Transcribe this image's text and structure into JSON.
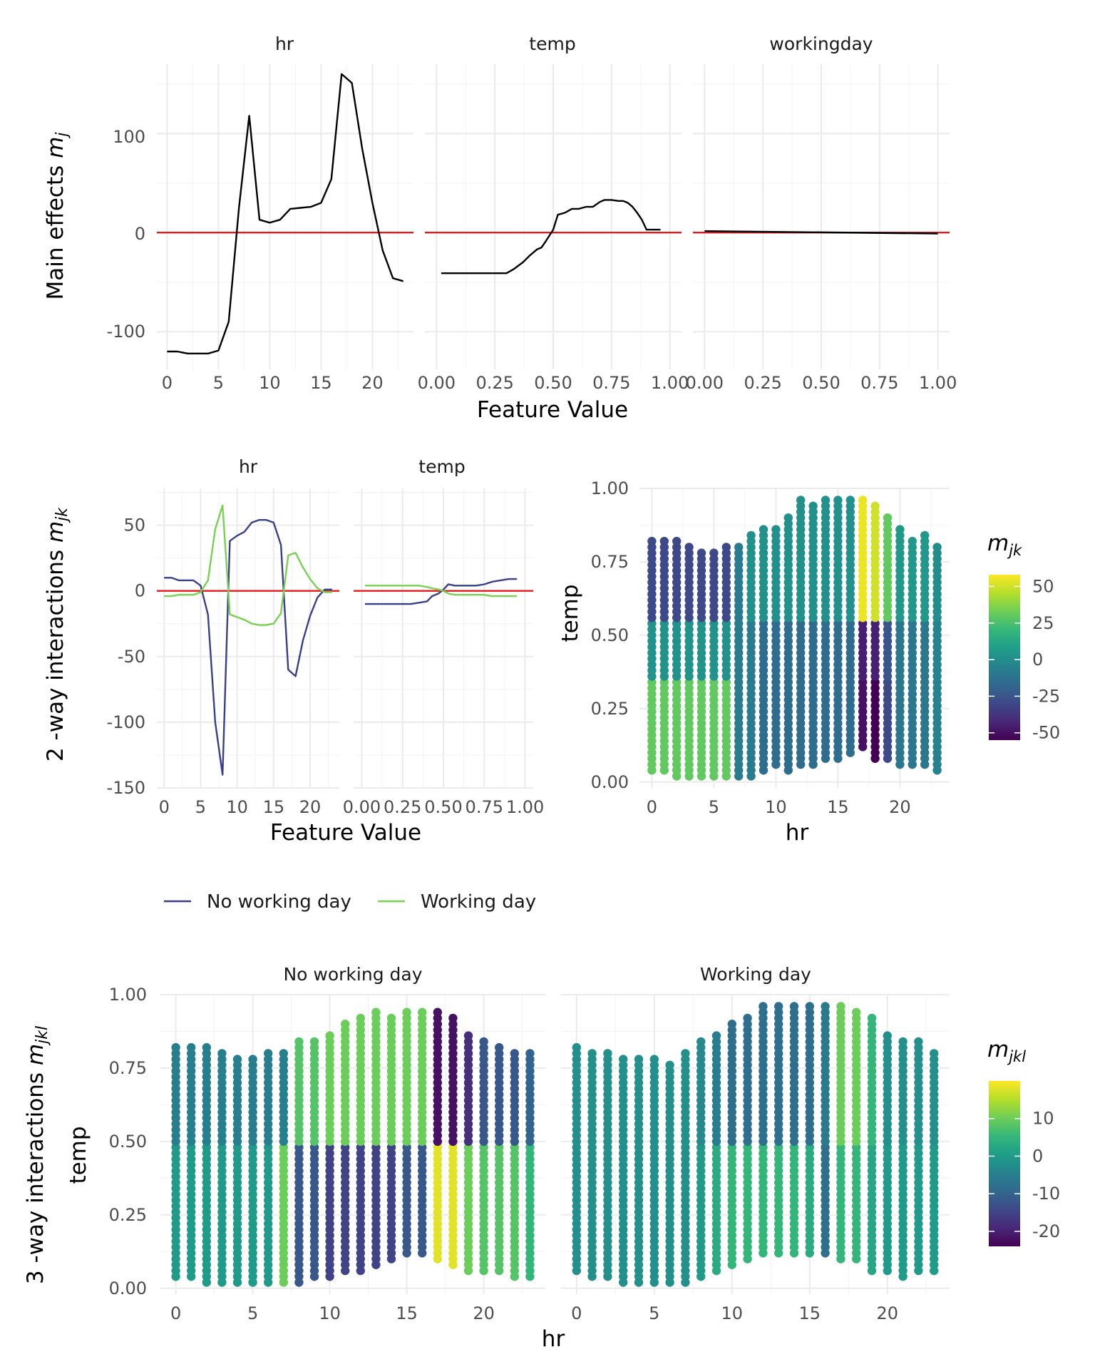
{
  "colors": {
    "zero_line": "#e41a1c",
    "main_line": "#000000",
    "no_working_day": "#3a3f8a",
    "working_day": "#79d151",
    "grid_major": "#ebebeb",
    "grid_minor": "#f3f3f3",
    "viridis": [
      "#440154",
      "#482878",
      "#3e4989",
      "#31688e",
      "#26828e",
      "#1f9e89",
      "#35b779",
      "#6ece58",
      "#b5de2b",
      "#fde725"
    ]
  },
  "row1": {
    "ylabel_main": "Main effects ",
    "ylabel_sym": "m",
    "ylabel_sub": "j",
    "xlabel": "Feature Value",
    "yticks": [
      "-100",
      "0",
      "100"
    ],
    "panels": [
      {
        "strip": "hr",
        "xticks": [
          "0",
          "5",
          "10",
          "15",
          "20"
        ]
      },
      {
        "strip": "temp",
        "xticks": [
          "0.00",
          "0.25",
          "0.50",
          "0.75",
          "1.00"
        ]
      },
      {
        "strip": "workingday",
        "xticks": [
          "0.00",
          "0.25",
          "0.50",
          "0.75",
          "1.00"
        ]
      }
    ]
  },
  "row2": {
    "ylabel_main": "2 -way interactions ",
    "ylabel_sym": "m",
    "ylabel_sub": "jk",
    "xlabel": "Feature Value",
    "yticks": [
      "-150",
      "-100",
      "-50",
      "0",
      "50"
    ],
    "panels": [
      {
        "strip": "hr",
        "xticks": [
          "0",
          "5",
          "10",
          "15",
          "20"
        ]
      },
      {
        "strip": "temp",
        "xticks": [
          "0.00",
          "0.25",
          "0.50",
          "0.75",
          "1.00"
        ]
      }
    ],
    "heatmap": {
      "xlabel": "hr",
      "ylabel": "temp",
      "xticks": [
        "0",
        "5",
        "10",
        "15",
        "20"
      ],
      "yticks": [
        "0.00",
        "0.25",
        "0.50",
        "0.75",
        "1.00"
      ],
      "legend_title_sym": "m",
      "legend_title_sub": "jk",
      "legend_ticks": [
        "50",
        "25",
        "0",
        "-25",
        "-50"
      ]
    },
    "legend": {
      "no_working_day": "No working day",
      "working_day": "Working day"
    }
  },
  "row3": {
    "ylabel_main": "3 -way interactions ",
    "ylabel_sym": "m",
    "ylabel_sub": "jkl",
    "ylabel_axis": "temp",
    "xlabel": "hr",
    "yticks": [
      "0.00",
      "0.25",
      "0.50",
      "0.75",
      "1.00"
    ],
    "panels": [
      {
        "strip": "No working day",
        "xticks": [
          "0",
          "5",
          "10",
          "15",
          "20"
        ]
      },
      {
        "strip": "Working day",
        "xticks": [
          "0",
          "5",
          "10",
          "15",
          "20"
        ]
      }
    ],
    "legend_title_sym": "m",
    "legend_title_sub": "jkl",
    "legend_ticks": [
      "10",
      "0",
      "-10",
      "-20"
    ]
  },
  "chart_data": [
    {
      "type": "line",
      "title": "",
      "ylabel": "Main effects m_j",
      "xlabel": "Feature Value",
      "ylim": [
        -138,
        170
      ],
      "facets": [
        {
          "strip": "hr",
          "xlim": [
            -1,
            24
          ],
          "series": [
            {
              "x": [
                0,
                1,
                2,
                3,
                4,
                5,
                6,
                7,
                8,
                9,
                10,
                11,
                12,
                13,
                14,
                15,
                16,
                17,
                18,
                19,
                20,
                21,
                22,
                23
              ],
              "values": [
                -120,
                -120,
                -122,
                -122,
                -122,
                -119,
                -90,
                25,
                118,
                13,
                10,
                13,
                24,
                25,
                26,
                30,
                54,
                160,
                151,
                85,
                30,
                -18,
                -46,
                -49
              ]
            }
          ]
        },
        {
          "strip": "temp",
          "xlim": [
            -0.05,
            1.05
          ],
          "series": [
            {
              "x": [
                0.02,
                0.1,
                0.2,
                0.25,
                0.3,
                0.33,
                0.37,
                0.4,
                0.43,
                0.45,
                0.47,
                0.5,
                0.52,
                0.55,
                0.58,
                0.61,
                0.64,
                0.67,
                0.7,
                0.72,
                0.75,
                0.78,
                0.8,
                0.82,
                0.84,
                0.86,
                0.88,
                0.9,
                0.92,
                0.94,
                0.96
              ],
              "values": [
                -41,
                -41,
                -41,
                -41,
                -41,
                -37,
                -30,
                -23,
                -17,
                -15,
                -8,
                3,
                18,
                20,
                24,
                24,
                26,
                26,
                31,
                33,
                33,
                32,
                32,
                30,
                26,
                20,
                13,
                3,
                3,
                3,
                3
              ]
            }
          ]
        },
        {
          "strip": "workingday",
          "xlim": [
            -0.05,
            1.05
          ],
          "series": [
            {
              "x": [
                0,
                1
              ],
              "values": [
                1.5,
                -1.0
              ]
            }
          ]
        }
      ]
    },
    {
      "type": "line",
      "title": "",
      "ylabel": "2 -way interactions m_jk",
      "xlabel": "Feature Value",
      "ylim": [
        -150,
        78
      ],
      "facets": [
        {
          "strip": "hr",
          "xlim": [
            -1,
            24
          ],
          "series": [
            {
              "name": "No working day",
              "x": [
                0,
                1,
                2,
                3,
                4,
                5,
                6,
                7,
                8,
                9,
                10,
                11,
                12,
                13,
                14,
                15,
                16,
                17,
                18,
                19,
                20,
                21,
                22,
                23
              ],
              "values": [
                10,
                10,
                8,
                8,
                8,
                4,
                -18,
                -100,
                -140,
                38,
                42,
                45,
                52,
                54,
                54,
                52,
                35,
                -60,
                -65,
                -38,
                -19,
                -5,
                1,
                1
              ]
            },
            {
              "name": "Working day",
              "x": [
                0,
                1,
                2,
                3,
                4,
                5,
                6,
                7,
                8,
                9,
                10,
                11,
                12,
                13,
                14,
                15,
                16,
                17,
                18,
                19,
                20,
                21,
                22,
                23
              ],
              "values": [
                -4,
                -4,
                -3,
                -3,
                -3,
                -1,
                8,
                47,
                65,
                -18,
                -20,
                -22,
                -25,
                -26,
                -26,
                -25,
                -17,
                27,
                29,
                18,
                9,
                2,
                -1,
                -1
              ]
            }
          ]
        },
        {
          "strip": "temp",
          "xlim": [
            -0.05,
            1.05
          ],
          "series": [
            {
              "name": "No working day",
              "x": [
                0.02,
                0.1,
                0.2,
                0.25,
                0.3,
                0.35,
                0.4,
                0.43,
                0.47,
                0.5,
                0.53,
                0.57,
                0.6,
                0.65,
                0.7,
                0.75,
                0.8,
                0.85,
                0.9,
                0.95
              ],
              "values": [
                -10,
                -10,
                -10,
                -10,
                -10,
                -9,
                -8,
                -4,
                -2,
                1,
                5,
                4,
                4,
                4,
                4,
                5,
                7,
                8,
                9,
                9
              ]
            },
            {
              "name": "Working day",
              "x": [
                0.02,
                0.1,
                0.2,
                0.25,
                0.3,
                0.35,
                0.4,
                0.43,
                0.47,
                0.5,
                0.53,
                0.57,
                0.6,
                0.65,
                0.7,
                0.75,
                0.8,
                0.85,
                0.9,
                0.95
              ],
              "values": [
                4,
                4,
                4,
                4,
                4,
                4,
                3,
                2,
                1,
                0,
                -2,
                -3,
                -3,
                -3,
                -3,
                -3,
                -4,
                -4,
                -4,
                -4
              ]
            }
          ]
        }
      ]
    },
    {
      "type": "scatter",
      "title": "",
      "xlabel": "hr",
      "ylabel": "temp",
      "xlim": [
        -1,
        24
      ],
      "ylim": [
        -0.02,
        1.0
      ],
      "color_label": "m_jk",
      "color_range": [
        -55,
        58
      ],
      "temp_range_by_hour": {
        "hr": [
          0,
          1,
          2,
          3,
          4,
          5,
          6,
          7,
          8,
          9,
          10,
          11,
          12,
          13,
          14,
          15,
          16,
          17,
          18,
          19,
          20,
          21,
          22,
          23
        ],
        "min": [
          0.04,
          0.04,
          0.02,
          0.02,
          0.02,
          0.02,
          0.02,
          0.02,
          0.02,
          0.04,
          0.06,
          0.04,
          0.06,
          0.06,
          0.08,
          0.08,
          0.1,
          0.12,
          0.08,
          0.08,
          0.06,
          0.06,
          0.06,
          0.04
        ],
        "max": [
          0.82,
          0.82,
          0.82,
          0.8,
          0.78,
          0.78,
          0.8,
          0.8,
          0.84,
          0.86,
          0.86,
          0.9,
          0.96,
          0.94,
          0.96,
          0.96,
          0.96,
          0.96,
          0.94,
          0.9,
          0.86,
          0.82,
          0.84,
          0.8
        ]
      },
      "color_by_hour_band": {
        "hr": [
          0,
          1,
          2,
          3,
          4,
          5,
          6,
          7,
          8,
          9,
          10,
          11,
          12,
          13,
          14,
          15,
          16,
          17,
          18,
          19,
          20,
          21,
          22,
          23
        ],
        "temp_below_0_35": [
          30,
          30,
          30,
          30,
          30,
          30,
          30,
          -8,
          -8,
          -15,
          -15,
          -15,
          -15,
          -15,
          -15,
          -15,
          -15,
          -50,
          -55,
          -30,
          -10,
          -10,
          -10,
          -5
        ],
        "temp_0_35_to_0_55": [
          3,
          3,
          3,
          3,
          3,
          3,
          3,
          -8,
          -8,
          -15,
          -15,
          -15,
          -15,
          -15,
          -15,
          -15,
          -15,
          -45,
          -45,
          -25,
          -10,
          -10,
          -10,
          -5
        ],
        "temp_above_0_55": [
          -30,
          -30,
          -30,
          -30,
          -30,
          -30,
          -30,
          -8,
          2,
          2,
          2,
          2,
          2,
          2,
          2,
          2,
          2,
          55,
          50,
          30,
          5,
          5,
          5,
          0
        ]
      }
    },
    {
      "type": "scatter",
      "title": "",
      "xlabel": "hr",
      "ylabel": "temp",
      "xlim": [
        -1,
        24
      ],
      "ylim": [
        -0.02,
        1.0
      ],
      "color_label": "m_jkl",
      "color_range": [
        -24,
        20
      ],
      "facets": [
        {
          "strip": "No working day",
          "temp_range_by_hour": {
            "hr": [
              0,
              1,
              2,
              3,
              4,
              5,
              6,
              7,
              8,
              9,
              10,
              11,
              12,
              13,
              14,
              15,
              16,
              17,
              18,
              19,
              20,
              21,
              22,
              23
            ],
            "min": [
              0.04,
              0.04,
              0.02,
              0.02,
              0.02,
              0.02,
              0.02,
              0.02,
              0.02,
              0.04,
              0.04,
              0.06,
              0.06,
              0.08,
              0.1,
              0.12,
              0.12,
              0.1,
              0.08,
              0.06,
              0.06,
              0.06,
              0.04,
              0.04
            ],
            "max": [
              0.82,
              0.82,
              0.82,
              0.8,
              0.78,
              0.78,
              0.8,
              0.8,
              0.84,
              0.84,
              0.86,
              0.9,
              0.92,
              0.94,
              0.92,
              0.94,
              0.94,
              0.94,
              0.92,
              0.86,
              0.84,
              0.82,
              0.8,
              0.8
            ]
          },
          "color_by_hour_band": {
            "temp_below_0_5": [
              0,
              0,
              0,
              0,
              0,
              0,
              0,
              10,
              -12,
              -12,
              -15,
              -15,
              -15,
              -15,
              -15,
              -12,
              -12,
              18,
              18,
              10,
              8,
              8,
              8,
              5
            ],
            "temp_above_0_5": [
              -5,
              -5,
              -5,
              -5,
              -5,
              -5,
              -5,
              -5,
              8,
              8,
              10,
              10,
              10,
              10,
              10,
              10,
              10,
              -22,
              -22,
              -18,
              -12,
              -12,
              -12,
              -10
            ]
          }
        },
        {
          "strip": "Working day",
          "temp_range_by_hour": {
            "hr": [
              0,
              1,
              2,
              3,
              4,
              5,
              6,
              7,
              8,
              9,
              10,
              11,
              12,
              13,
              14,
              15,
              16,
              17,
              18,
              19,
              20,
              21,
              22,
              23
            ],
            "min": [
              0.06,
              0.04,
              0.04,
              0.02,
              0.02,
              0.02,
              0.02,
              0.02,
              0.04,
              0.06,
              0.08,
              0.1,
              0.12,
              0.12,
              0.12,
              0.12,
              0.12,
              0.1,
              0.1,
              0.06,
              0.06,
              0.04,
              0.06,
              0.06
            ],
            "max": [
              0.82,
              0.8,
              0.8,
              0.78,
              0.78,
              0.78,
              0.76,
              0.8,
              0.84,
              0.86,
              0.9,
              0.92,
              0.96,
              0.96,
              0.96,
              0.96,
              0.96,
              0.96,
              0.94,
              0.92,
              0.86,
              0.84,
              0.84,
              0.8
            ]
          },
          "color_by_hour_band": {
            "temp_below_0_5": [
              -2,
              -2,
              -2,
              -2,
              -2,
              -2,
              -2,
              -2,
              0,
              3,
              5,
              5,
              5,
              5,
              5,
              3,
              -8,
              5,
              5,
              2,
              0,
              0,
              0,
              0
            ],
            "temp_above_0_5": [
              -2,
              -2,
              -2,
              -2,
              -2,
              -2,
              -2,
              -2,
              -3,
              -5,
              -8,
              -8,
              -8,
              -8,
              -8,
              -8,
              -6,
              10,
              10,
              5,
              -2,
              -2,
              -2,
              -2
            ]
          }
        }
      ]
    }
  ]
}
